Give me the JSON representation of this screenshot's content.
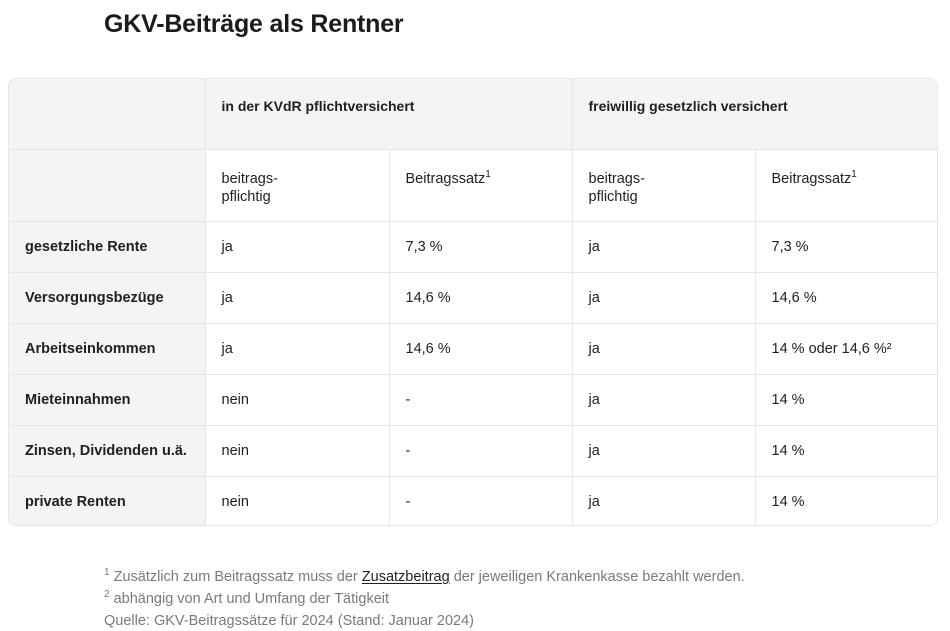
{
  "title": "GKV-Beiträge als Rentner",
  "table": {
    "group_headers": [
      "in der KVdR pflichtversichert",
      "freiwillig gesetzlich versichert"
    ],
    "sub_headers": {
      "pflichtig_line1": "beitrags-",
      "pflichtig_line2": "pflichtig",
      "rate": "Beitragssatz",
      "rate_sup": "1"
    },
    "rows": [
      {
        "label": "gesetzliche Rente",
        "kvdr_pflichtig": "ja",
        "kvdr_satz": "7,3 %",
        "frei_pflichtig": "ja",
        "frei_satz": "7,3 %"
      },
      {
        "label": "Versorgungsbezüge",
        "kvdr_pflichtig": "ja",
        "kvdr_satz": "14,6 %",
        "frei_pflichtig": "ja",
        "frei_satz": "14,6 %"
      },
      {
        "label": "Arbeitseinkommen",
        "kvdr_pflichtig": "ja",
        "kvdr_satz": "14,6 %",
        "frei_pflichtig": "ja",
        "frei_satz": "14 % oder 14,6 %²"
      },
      {
        "label": "Mieteinnahmen",
        "kvdr_pflichtig": "nein",
        "kvdr_satz": "-",
        "frei_pflichtig": "ja",
        "frei_satz": "14 %"
      },
      {
        "label": "Zinsen, Dividenden u.ä.",
        "kvdr_pflichtig": "nein",
        "kvdr_satz": "-",
        "frei_pflichtig": "ja",
        "frei_satz": "14 %"
      },
      {
        "label": "private Renten",
        "kvdr_pflichtig": "nein",
        "kvdr_satz": "-",
        "frei_pflichtig": "ja",
        "frei_satz": "14 %"
      }
    ]
  },
  "footnotes": {
    "note1_sup": "1",
    "note1_before": "Zusätzlich zum Beitragssatz muss der",
    "note1_link": "Zusatzbeitrag",
    "note1_after": "der jeweiligen Krankenkasse bezahlt werden.",
    "note2_sup": "2",
    "note2_text": "abhängig von Art und Umfang der Tätigkeit",
    "source": "Quelle: GKV-Beitragssätze für 2024 (Stand: Januar 2024)"
  }
}
